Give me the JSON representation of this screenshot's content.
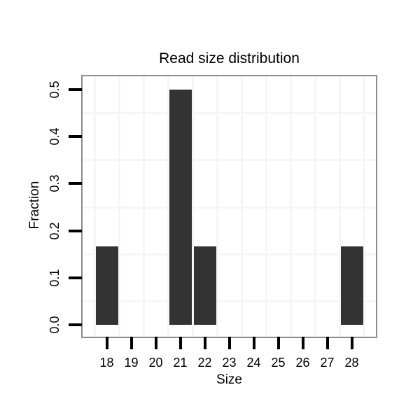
{
  "figure": {
    "kind": "static-plot-image",
    "background": "#ffffff"
  },
  "chart_data": {
    "type": "bar",
    "title": "Read size distribution",
    "xlabel": "Size",
    "ylabel": "Fraction",
    "categories": [
      18,
      19,
      20,
      21,
      22,
      23,
      24,
      25,
      26,
      27,
      28
    ],
    "values": [
      0.1667,
      0,
      0,
      0.5,
      0.1667,
      0,
      0,
      0,
      0,
      0,
      0.1667
    ],
    "x_tick_labels": [
      "18",
      "19",
      "20",
      "21",
      "22",
      "23",
      "24",
      "25",
      "26",
      "27",
      "28"
    ],
    "y_ticks": [
      0.0,
      0.1,
      0.2,
      0.3,
      0.4,
      0.5
    ],
    "y_tick_labels": [
      "0.0",
      "0.1",
      "0.2",
      "0.3",
      "0.4",
      "0.5"
    ],
    "xlim": [
      17,
      29
    ],
    "ylim": [
      0,
      0.5
    ],
    "legend": "none",
    "grid": {
      "style": "light offset grid",
      "vertical_at": [
        17.5,
        18.5,
        19.5,
        20.5,
        21.5,
        22.5,
        23.5,
        24.5,
        25.5,
        26.5,
        27.5,
        28.5
      ],
      "horizontal_at": [
        0.05,
        0.15,
        0.25,
        0.35,
        0.45
      ]
    },
    "colors": {
      "bar": "#333333",
      "panel_border": "#8c8c8c",
      "gridline": "#f6f6f6",
      "tick": "#000000",
      "text": "#000000",
      "panel_background": "#ffffff"
    }
  }
}
